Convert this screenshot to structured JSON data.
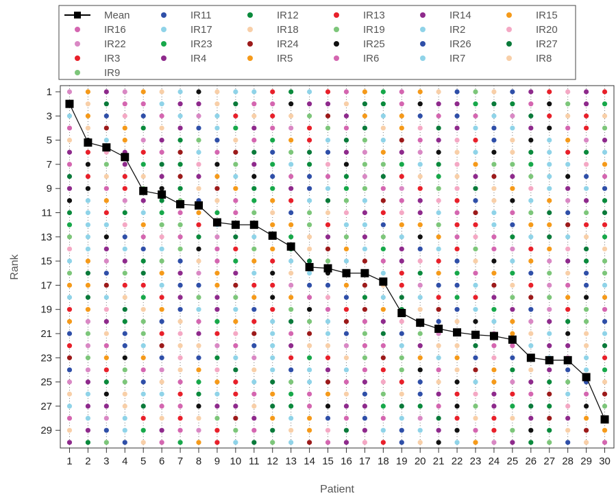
{
  "chart_data": {
    "type": "scatter",
    "xlabel": "Patient",
    "ylabel": "Rank",
    "x_ticks": [
      1,
      2,
      3,
      4,
      5,
      6,
      7,
      8,
      9,
      10,
      11,
      12,
      13,
      14,
      15,
      16,
      17,
      18,
      19,
      20,
      21,
      22,
      23,
      24,
      25,
      26,
      27,
      28,
      29,
      30
    ],
    "y_ticks": [
      1,
      3,
      5,
      7,
      9,
      11,
      13,
      15,
      17,
      19,
      21,
      23,
      25,
      27,
      29
    ],
    "xlim": [
      0.5,
      30.5
    ],
    "ylim_inverted": [
      30,
      0.5
    ],
    "grid": "vertical dotted lines at each patient",
    "legend_position": "top",
    "legend": [
      {
        "label": "Mean",
        "color": "#000000",
        "marker": "square-line"
      },
      {
        "label": "IR11",
        "color": "#2f4fa8"
      },
      {
        "label": "IR12",
        "color": "#0a8a3c"
      },
      {
        "label": "IR13",
        "color": "#e8202a"
      },
      {
        "label": "IR14",
        "color": "#8e2a8c"
      },
      {
        "label": "IR15",
        "color": "#f59a1a"
      },
      {
        "label": "IR16",
        "color": "#d466b0"
      },
      {
        "label": "IR17",
        "color": "#8fd3e8"
      },
      {
        "label": "IR18",
        "color": "#f8cfa8"
      },
      {
        "label": "IR19",
        "color": "#7dc67a"
      },
      {
        "label": "IR2",
        "color": "#8fd3e8"
      },
      {
        "label": "IR20",
        "color": "#f4a8c4"
      },
      {
        "label": "IR22",
        "color": "#d988c4"
      },
      {
        "label": "IR23",
        "color": "#17a84a"
      },
      {
        "label": "IR24",
        "color": "#9c1a1a"
      },
      {
        "label": "IR25",
        "color": "#111111"
      },
      {
        "label": "IR26",
        "color": "#2f4fa8"
      },
      {
        "label": "IR27",
        "color": "#0a7a3a"
      },
      {
        "label": "IR3",
        "color": "#e8202a"
      },
      {
        "label": "IR4",
        "color": "#8e2a8c"
      },
      {
        "label": "IR5",
        "color": "#f59a1a"
      },
      {
        "label": "IR6",
        "color": "#d466b0"
      },
      {
        "label": "IR7",
        "color": "#8fd3e8"
      },
      {
        "label": "IR8",
        "color": "#f8cfa8"
      },
      {
        "label": "IR9",
        "color": "#7dc67a"
      }
    ],
    "mean_series": {
      "name": "Mean",
      "x": [
        1,
        2,
        3,
        4,
        5,
        6,
        7,
        8,
        9,
        10,
        11,
        12,
        13,
        14,
        15,
        16,
        17,
        18,
        19,
        20,
        21,
        22,
        23,
        24,
        25,
        26,
        27,
        28,
        29,
        30
      ],
      "y": [
        2.0,
        5.2,
        5.6,
        6.4,
        9.2,
        9.5,
        10.3,
        10.4,
        11.8,
        12.0,
        12.0,
        12.9,
        13.8,
        15.5,
        15.6,
        16.0,
        16.0,
        16.7,
        19.3,
        20.1,
        20.6,
        20.9,
        21.1,
        21.2,
        21.5,
        23.0,
        23.2,
        23.2,
        24.6,
        28.1
      ]
    },
    "rank_point_density": "each patient column shows the rank (1-30) of every individual ranking IR series as colored dots"
  }
}
